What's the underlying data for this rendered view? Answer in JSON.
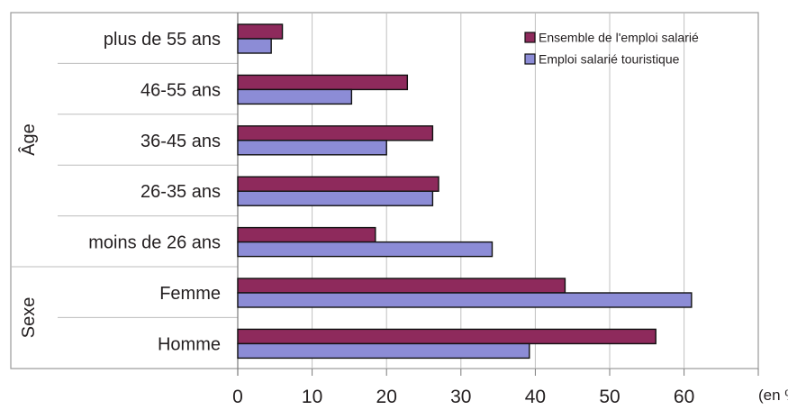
{
  "chart_data": {
    "type": "bar",
    "orientation": "horizontal",
    "categories": [
      "plus de 55 ans",
      "46-55 ans",
      "36-45 ans",
      "26-35 ans",
      "moins de 26 ans",
      "Femme",
      "Homme"
    ],
    "groups": [
      {
        "label": "Âge",
        "categories": [
          "plus de 55 ans",
          "46-55 ans",
          "36-45 ans",
          "26-35 ans",
          "moins de 26 ans"
        ]
      },
      {
        "label": "Sexe",
        "categories": [
          "Femme",
          "Homme"
        ]
      }
    ],
    "series": [
      {
        "name": "Ensemble de l'emploi salarié",
        "color": "#8e2a5c",
        "values": [
          6,
          22.8,
          26.2,
          27,
          18.5,
          44,
          56.2
        ]
      },
      {
        "name": "Emploi salarié touristique",
        "color": "#8c8cd6",
        "values": [
          4.5,
          15.3,
          20,
          26.2,
          34.2,
          61,
          39.2
        ]
      }
    ],
    "xlim": [
      0,
      70
    ],
    "xticks": [
      "0",
      "10",
      "20",
      "30",
      "40",
      "50",
      "60"
    ],
    "unit_label": "(en %)",
    "grid": true,
    "legend_position": "top-right"
  }
}
